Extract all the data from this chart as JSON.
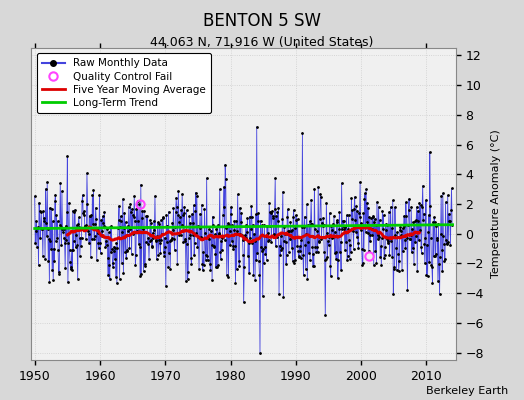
{
  "title": "BENTON 5 SW",
  "subtitle": "44.063 N, 71.916 W (United States)",
  "ylabel": "Temperature Anomaly (°C)",
  "attribution": "Berkeley Earth",
  "xlim": [
    1949.5,
    2014.5
  ],
  "ylim": [
    -8.5,
    12.5
  ],
  "yticks": [
    -8,
    -6,
    -4,
    -2,
    0,
    2,
    4,
    6,
    8,
    10,
    12
  ],
  "xticks": [
    1950,
    1960,
    1970,
    1980,
    1990,
    2000,
    2010
  ],
  "plot_bg": "#f0f0f0",
  "fig_bg": "#d8d8d8",
  "grid_color": "#cccccc",
  "line_color": "#4444dd",
  "ma_color": "#dd0000",
  "trend_color": "#00cc00",
  "trend_slope": 0.004,
  "trend_intercept": 0.35,
  "trend_x_start": 1950,
  "trend_x_end": 2014,
  "qc_fail_color": "#ff44ff",
  "seed": 7
}
